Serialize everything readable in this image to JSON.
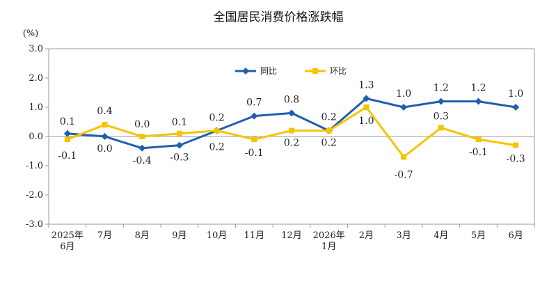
{
  "chart_data": {
    "type": "line",
    "title": "全国居民消费价格涨跌幅",
    "unit_label": "(%)",
    "categories": [
      [
        "2025年",
        "6月"
      ],
      [
        "7月"
      ],
      [
        "8月"
      ],
      [
        "9月"
      ],
      [
        "10月"
      ],
      [
        "11月"
      ],
      [
        "12月"
      ],
      [
        "2026年",
        "1月"
      ],
      [
        "2月"
      ],
      [
        "3月"
      ],
      [
        "4月"
      ],
      [
        "5月"
      ],
      [
        "6月"
      ]
    ],
    "ylim": [
      -3.0,
      3.0
    ],
    "yticks": [
      "3.0",
      "2.0",
      "1.0",
      "0.0",
      "-1.0",
      "-2.0",
      "-3.0"
    ],
    "ytick_values": [
      3,
      2,
      1,
      0,
      -1,
      -2,
      -3
    ],
    "legend_position": "top-center",
    "grid": false,
    "series": [
      {
        "name": "同比",
        "color": "#1f5fad",
        "marker": "diamond",
        "values": [
          0.1,
          0.0,
          -0.4,
          -0.3,
          0.2,
          0.7,
          0.8,
          0.2,
          1.3,
          1.0,
          1.2,
          1.2,
          1.0
        ],
        "labels": [
          "0.1",
          "0.0",
          "-0.4",
          "-0.3",
          "0.2",
          "0.7",
          "0.8",
          "0.2",
          "1.3",
          "1.0",
          "1.2",
          "1.2",
          "1.0"
        ]
      },
      {
        "name": "环比",
        "color": "#f5c400",
        "marker": "square",
        "values": [
          -0.1,
          0.4,
          0.0,
          0.1,
          0.2,
          -0.1,
          0.2,
          0.2,
          1.0,
          -0.7,
          0.3,
          -0.1,
          -0.3
        ],
        "labels": [
          "-0.1",
          "0.4",
          "0.0",
          "0.1",
          "0.2",
          "-0.1",
          "0.2",
          "0.2",
          "1.0",
          "-0.7",
          "0.3",
          "-0.1",
          "-0.3"
        ]
      }
    ]
  }
}
